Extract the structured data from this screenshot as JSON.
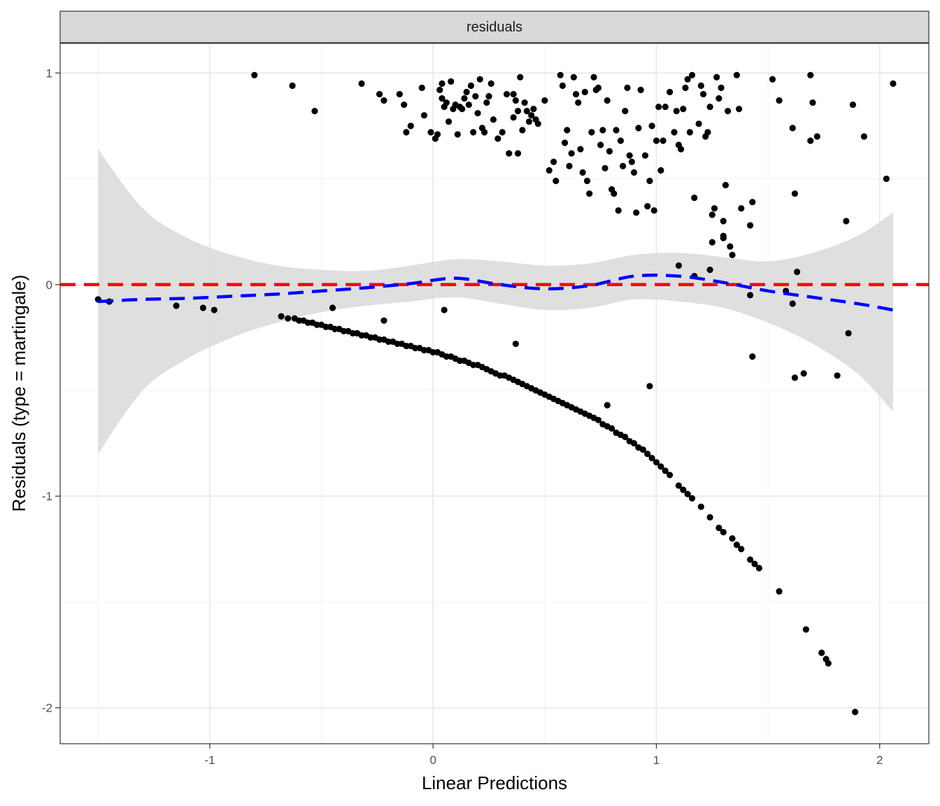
{
  "chart_data": {
    "type": "scatter",
    "facet_label": "residuals",
    "xlabel": "Linear Predictions",
    "ylabel": "Residuals (type = martingale)",
    "xlim": [
      -1.67,
      2.22
    ],
    "ylim": [
      -2.17,
      1.14
    ],
    "x_ticks": [
      -1,
      0,
      1,
      2
    ],
    "x_tick_labels": [
      "-1",
      "0",
      "1",
      "2"
    ],
    "y_ticks": [
      -2,
      -1,
      0,
      1
    ],
    "y_tick_labels": [
      "-2",
      "-1",
      "0",
      "1"
    ],
    "grid": true,
    "reference_line": {
      "y": 0,
      "color": "#ff0000",
      "style": "dashed"
    },
    "smooth": {
      "color": "#0000ff",
      "style": "dashed",
      "band_color": "#d9d9d9",
      "x": [
        -1.5,
        -1.3,
        -1.1,
        -0.9,
        -0.7,
        -0.5,
        -0.3,
        -0.1,
        0.1,
        0.3,
        0.5,
        0.7,
        0.9,
        1.1,
        1.3,
        1.5,
        1.7,
        1.9,
        2.06
      ],
      "fit": [
        -0.08,
        -0.07,
        -0.065,
        -0.055,
        -0.045,
        -0.03,
        -0.015,
        0.005,
        0.03,
        0.0,
        -0.02,
        -0.005,
        0.04,
        0.04,
        0.01,
        -0.03,
        -0.06,
        -0.09,
        -0.12
      ],
      "upper": [
        0.64,
        0.36,
        0.22,
        0.14,
        0.09,
        0.07,
        0.065,
        0.09,
        0.12,
        0.11,
        0.09,
        0.1,
        0.14,
        0.15,
        0.13,
        0.11,
        0.15,
        0.23,
        0.34
      ],
      "lower": [
        -0.8,
        -0.5,
        -0.35,
        -0.25,
        -0.18,
        -0.13,
        -0.1,
        -0.08,
        -0.06,
        -0.09,
        -0.12,
        -0.11,
        -0.07,
        -0.08,
        -0.11,
        -0.18,
        -0.28,
        -0.42,
        -0.6
      ]
    },
    "points": [
      [
        -0.8,
        0.99
      ],
      [
        -0.63,
        0.94
      ],
      [
        -0.53,
        0.82
      ],
      [
        -0.32,
        0.95
      ],
      [
        -0.24,
        0.9
      ],
      [
        -0.22,
        0.87
      ],
      [
        -0.15,
        0.9
      ],
      [
        -0.13,
        0.85
      ],
      [
        -0.12,
        0.72
      ],
      [
        -0.1,
        0.75
      ],
      [
        -0.05,
        0.93
      ],
      [
        -0.04,
        0.8
      ],
      [
        0.04,
        0.95
      ],
      [
        -0.01,
        0.72
      ],
      [
        0.02,
        0.71
      ],
      [
        0.01,
        0.69
      ],
      [
        0.03,
        0.92
      ],
      [
        0.04,
        0.88
      ],
      [
        0.05,
        0.84
      ],
      [
        0.06,
        0.86
      ],
      [
        0.07,
        0.77
      ],
      [
        0.08,
        0.96
      ],
      [
        0.09,
        0.83
      ],
      [
        0.1,
        0.85
      ],
      [
        0.11,
        0.71
      ],
      [
        0.12,
        0.84
      ],
      [
        0.13,
        0.83
      ],
      [
        0.14,
        0.88
      ],
      [
        0.15,
        0.91
      ],
      [
        0.16,
        0.85
      ],
      [
        0.17,
        0.94
      ],
      [
        0.18,
        0.72
      ],
      [
        0.19,
        0.89
      ],
      [
        0.2,
        0.81
      ],
      [
        0.21,
        0.97
      ],
      [
        0.22,
        0.74
      ],
      [
        0.23,
        0.72
      ],
      [
        0.24,
        0.86
      ],
      [
        0.25,
        0.89
      ],
      [
        0.26,
        0.95
      ],
      [
        0.27,
        0.78
      ],
      [
        0.29,
        0.69
      ],
      [
        0.31,
        0.72
      ],
      [
        0.33,
        0.9
      ],
      [
        0.34,
        0.62
      ],
      [
        0.36,
        0.79
      ],
      [
        0.37,
        0.87
      ],
      [
        0.38,
        0.82
      ],
      [
        0.39,
        0.98
      ],
      [
        0.4,
        0.73
      ],
      [
        0.41,
        0.86
      ],
      [
        0.42,
        0.82
      ],
      [
        0.43,
        0.77
      ],
      [
        0.44,
        0.8
      ],
      [
        0.45,
        0.83
      ],
      [
        0.46,
        0.78
      ],
      [
        0.47,
        0.76
      ],
      [
        0.5,
        0.87
      ],
      [
        0.38,
        0.62
      ],
      [
        0.36,
        0.9
      ],
      [
        0.52,
        0.54
      ],
      [
        0.54,
        0.58
      ],
      [
        0.55,
        0.49
      ],
      [
        0.57,
        0.99
      ],
      [
        0.58,
        0.94
      ],
      [
        0.59,
        0.67
      ],
      [
        0.6,
        0.73
      ],
      [
        0.61,
        0.56
      ],
      [
        0.62,
        0.62
      ],
      [
        0.63,
        0.98
      ],
      [
        0.64,
        0.9
      ],
      [
        0.65,
        0.86
      ],
      [
        0.66,
        0.64
      ],
      [
        0.67,
        0.53
      ],
      [
        0.68,
        0.91
      ],
      [
        0.69,
        0.49
      ],
      [
        0.7,
        0.43
      ],
      [
        0.71,
        0.72
      ],
      [
        0.72,
        0.98
      ],
      [
        0.73,
        0.92
      ],
      [
        0.74,
        0.93
      ],
      [
        0.75,
        0.66
      ],
      [
        0.76,
        0.73
      ],
      [
        0.77,
        0.55
      ],
      [
        0.78,
        0.87
      ],
      [
        0.79,
        0.63
      ],
      [
        0.8,
        0.45
      ],
      [
        0.81,
        0.43
      ],
      [
        0.82,
        0.73
      ],
      [
        0.83,
        0.35
      ],
      [
        0.84,
        0.68
      ],
      [
        0.85,
        0.56
      ],
      [
        0.86,
        0.82
      ],
      [
        0.87,
        0.93
      ],
      [
        0.88,
        0.61
      ],
      [
        0.89,
        0.58
      ],
      [
        0.9,
        0.53
      ],
      [
        0.91,
        0.34
      ],
      [
        0.92,
        0.74
      ],
      [
        0.93,
        0.92
      ],
      [
        0.95,
        0.61
      ],
      [
        0.96,
        0.37
      ],
      [
        0.97,
        0.49
      ],
      [
        0.98,
        0.75
      ],
      [
        0.99,
        0.35
      ],
      [
        1.0,
        0.68
      ],
      [
        1.01,
        0.84
      ],
      [
        1.02,
        0.54
      ],
      [
        1.03,
        0.68
      ],
      [
        1.04,
        0.84
      ],
      [
        1.06,
        0.91
      ],
      [
        1.08,
        0.72
      ],
      [
        1.09,
        0.82
      ],
      [
        1.1,
        0.66
      ],
      [
        1.11,
        0.64
      ],
      [
        1.12,
        0.83
      ],
      [
        1.13,
        0.93
      ],
      [
        1.14,
        0.97
      ],
      [
        1.15,
        0.72
      ],
      [
        1.16,
        0.99
      ],
      [
        1.17,
        0.41
      ],
      [
        1.19,
        0.76
      ],
      [
        1.2,
        0.94
      ],
      [
        1.21,
        0.9
      ],
      [
        1.22,
        0.7
      ],
      [
        1.23,
        0.72
      ],
      [
        1.24,
        0.84
      ],
      [
        1.25,
        0.33
      ],
      [
        1.26,
        0.36
      ],
      [
        1.27,
        0.98
      ],
      [
        1.28,
        0.88
      ],
      [
        1.29,
        0.93
      ],
      [
        1.3,
        0.22
      ],
      [
        1.31,
        0.47
      ],
      [
        1.32,
        0.82
      ],
      [
        1.33,
        0.18
      ],
      [
        1.34,
        0.14
      ],
      [
        1.36,
        0.99
      ],
      [
        1.37,
        0.83
      ],
      [
        1.38,
        0.36
      ],
      [
        1.42,
        0.28
      ],
      [
        1.43,
        0.39
      ],
      [
        1.52,
        0.97
      ],
      [
        1.55,
        0.87
      ],
      [
        1.61,
        0.74
      ],
      [
        1.62,
        0.43
      ],
      [
        1.69,
        0.99
      ],
      [
        1.7,
        0.86
      ],
      [
        1.72,
        0.7
      ],
      [
        1.69,
        0.68
      ],
      [
        1.85,
        0.3
      ],
      [
        1.88,
        0.85
      ],
      [
        1.93,
        0.7
      ],
      [
        2.03,
        0.5
      ],
      [
        2.06,
        0.95
      ],
      [
        1.3,
        0.3
      ],
      [
        1.25,
        0.2
      ],
      [
        1.3,
        0.23
      ],
      [
        -1.5,
        -0.07
      ],
      [
        -1.45,
        -0.08
      ],
      [
        -1.15,
        -0.1
      ],
      [
        -1.03,
        -0.11
      ],
      [
        -0.98,
        -0.12
      ],
      [
        -0.45,
        -0.11
      ],
      [
        -0.22,
        -0.17
      ],
      [
        0.05,
        -0.12
      ],
      [
        0.37,
        -0.28
      ],
      [
        0.78,
        -0.57
      ],
      [
        0.97,
        -0.48
      ],
      [
        1.1,
        0.09
      ],
      [
        1.17,
        0.04
      ],
      [
        1.24,
        0.07
      ],
      [
        1.42,
        -0.05
      ],
      [
        1.43,
        -0.34
      ],
      [
        1.58,
        -0.03
      ],
      [
        1.61,
        -0.09
      ],
      [
        1.63,
        0.06
      ],
      [
        1.62,
        -0.44
      ],
      [
        1.66,
        -0.42
      ],
      [
        1.81,
        -0.43
      ],
      [
        1.86,
        -0.23
      ],
      [
        -0.68,
        -0.15
      ],
      [
        -0.65,
        -0.16
      ],
      [
        -0.62,
        -0.16
      ],
      [
        -0.6,
        -0.17
      ],
      [
        -0.58,
        -0.17
      ],
      [
        -0.56,
        -0.18
      ],
      [
        -0.54,
        -0.18
      ],
      [
        -0.52,
        -0.19
      ],
      [
        -0.5,
        -0.19
      ],
      [
        -0.48,
        -0.2
      ],
      [
        -0.46,
        -0.2
      ],
      [
        -0.44,
        -0.21
      ],
      [
        -0.42,
        -0.21
      ],
      [
        -0.4,
        -0.22
      ],
      [
        -0.38,
        -0.22
      ],
      [
        -0.36,
        -0.23
      ],
      [
        -0.34,
        -0.23
      ],
      [
        -0.32,
        -0.24
      ],
      [
        -0.3,
        -0.24
      ],
      [
        -0.28,
        -0.25
      ],
      [
        -0.26,
        -0.25
      ],
      [
        -0.24,
        -0.26
      ],
      [
        -0.22,
        -0.26
      ],
      [
        -0.2,
        -0.27
      ],
      [
        -0.18,
        -0.27
      ],
      [
        -0.16,
        -0.28
      ],
      [
        -0.14,
        -0.28
      ],
      [
        -0.12,
        -0.29
      ],
      [
        -0.1,
        -0.29
      ],
      [
        -0.08,
        -0.3
      ],
      [
        -0.06,
        -0.3
      ],
      [
        -0.04,
        -0.31
      ],
      [
        -0.02,
        -0.31
      ],
      [
        0.0,
        -0.32
      ],
      [
        0.02,
        -0.32
      ],
      [
        0.04,
        -0.33
      ],
      [
        0.06,
        -0.34
      ],
      [
        0.08,
        -0.34
      ],
      [
        0.1,
        -0.35
      ],
      [
        0.12,
        -0.36
      ],
      [
        0.14,
        -0.36
      ],
      [
        0.16,
        -0.37
      ],
      [
        0.18,
        -0.38
      ],
      [
        0.2,
        -0.38
      ],
      [
        0.22,
        -0.39
      ],
      [
        0.24,
        -0.4
      ],
      [
        0.26,
        -0.41
      ],
      [
        0.28,
        -0.42
      ],
      [
        0.3,
        -0.43
      ],
      [
        0.32,
        -0.43
      ],
      [
        0.34,
        -0.44
      ],
      [
        0.36,
        -0.45
      ],
      [
        0.38,
        -0.46
      ],
      [
        0.4,
        -0.47
      ],
      [
        0.42,
        -0.48
      ],
      [
        0.44,
        -0.49
      ],
      [
        0.46,
        -0.5
      ],
      [
        0.48,
        -0.51
      ],
      [
        0.5,
        -0.52
      ],
      [
        0.52,
        -0.53
      ],
      [
        0.54,
        -0.54
      ],
      [
        0.56,
        -0.55
      ],
      [
        0.58,
        -0.56
      ],
      [
        0.6,
        -0.57
      ],
      [
        0.62,
        -0.58
      ],
      [
        0.64,
        -0.59
      ],
      [
        0.66,
        -0.6
      ],
      [
        0.68,
        -0.61
      ],
      [
        0.7,
        -0.62
      ],
      [
        0.72,
        -0.63
      ],
      [
        0.74,
        -0.64
      ],
      [
        0.76,
        -0.66
      ],
      [
        0.78,
        -0.67
      ],
      [
        0.8,
        -0.68
      ],
      [
        0.82,
        -0.7
      ],
      [
        0.84,
        -0.71
      ],
      [
        0.86,
        -0.72
      ],
      [
        0.88,
        -0.74
      ],
      [
        0.9,
        -0.75
      ],
      [
        0.92,
        -0.77
      ],
      [
        0.94,
        -0.78
      ],
      [
        0.96,
        -0.8
      ],
      [
        0.98,
        -0.82
      ],
      [
        1.0,
        -0.84
      ],
      [
        1.02,
        -0.86
      ],
      [
        1.04,
        -0.88
      ],
      [
        1.06,
        -0.9
      ],
      [
        1.1,
        -0.95
      ],
      [
        1.12,
        -0.97
      ],
      [
        1.14,
        -0.99
      ],
      [
        1.16,
        -1.01
      ],
      [
        1.2,
        -1.05
      ],
      [
        1.24,
        -1.1
      ],
      [
        1.28,
        -1.15
      ],
      [
        1.3,
        -1.17
      ],
      [
        1.34,
        -1.2
      ],
      [
        1.36,
        -1.23
      ],
      [
        1.38,
        -1.25
      ],
      [
        1.42,
        -1.3
      ],
      [
        1.44,
        -1.32
      ],
      [
        1.46,
        -1.34
      ],
      [
        1.55,
        -1.45
      ],
      [
        1.67,
        -1.63
      ],
      [
        1.74,
        -1.74
      ],
      [
        1.76,
        -1.77
      ],
      [
        1.77,
        -1.79
      ],
      [
        1.89,
        -2.02
      ]
    ]
  }
}
